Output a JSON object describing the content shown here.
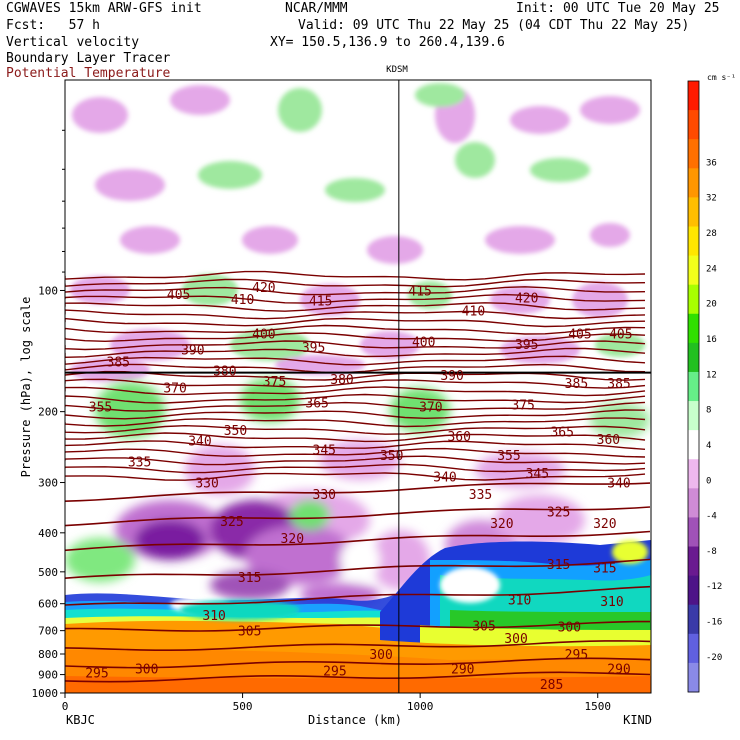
{
  "header": {
    "model": "CGWAVES 15km ARW-GFS init",
    "org": "NCAR/MMM",
    "init": "Init: 00 UTC Tue 20 May 25",
    "fcst": "Fcst:   57 h",
    "valid": "Valid: 09 UTC Thu 22 May 25 (04 CDT Thu 22 May 25)",
    "field1": "Vertical velocity",
    "field2": "Boundary Layer Tracer",
    "field3": "Potential Temperature",
    "xy": "XY= 150.5,136.9 to 260.4,139.6",
    "station_mid": "KDSM",
    "left_end": "KBJC",
    "right_end": "KIND",
    "units": "cm s⁻¹"
  },
  "colors": {
    "theta_line": "#7a0000",
    "field3_text": "#8b1a1a",
    "wmax": "#ff0000"
  },
  "chart_data": {
    "type": "heatmap",
    "xlabel": "Distance (km)",
    "ylabel": "Pressure (hPa), log scale",
    "xlim": [
      0,
      1650
    ],
    "ylim": [
      1000,
      30
    ],
    "x_ticks": [
      0,
      500,
      1000,
      1500
    ],
    "y_ticks": [
      100,
      200,
      300,
      400,
      500,
      600,
      700,
      800,
      900,
      1000
    ],
    "y_scale": "log",
    "vertical_marker_km": 940,
    "colorbar_levels": [
      36,
      32,
      28,
      24,
      20,
      16,
      12,
      8,
      4,
      0,
      -4,
      -8,
      -12,
      -16,
      -20
    ],
    "colorbar_colors": [
      "#ff1a00",
      "#ff4a00",
      "#ff7000",
      "#ff9600",
      "#ffbe00",
      "#ffe600",
      "#f2ff1a",
      "#a8ff00",
      "#30e000",
      "#22c020",
      "#66ee88",
      "#c8ffcc",
      "#ffffff",
      "#eeb8ee",
      "#cf8bd6",
      "#a052b8",
      "#6a1a90",
      "#4e1488",
      "#3a3aa8",
      "#6060e0",
      "#8a8ae8"
    ],
    "theta_labels": [
      {
        "x": 1000,
        "p": 100,
        "v": "415"
      },
      {
        "x": 320,
        "p": 102,
        "v": "405"
      },
      {
        "x": 500,
        "p": 105,
        "v": "410"
      },
      {
        "x": 560,
        "p": 98,
        "v": "420"
      },
      {
        "x": 720,
        "p": 106,
        "v": "415"
      },
      {
        "x": 1150,
        "p": 112,
        "v": "410"
      },
      {
        "x": 1300,
        "p": 104,
        "v": "420"
      },
      {
        "x": 560,
        "p": 128,
        "v": "400"
      },
      {
        "x": 360,
        "p": 140,
        "v": "390"
      },
      {
        "x": 1010,
        "p": 134,
        "v": "400"
      },
      {
        "x": 700,
        "p": 138,
        "v": "395"
      },
      {
        "x": 1300,
        "p": 136,
        "v": "395"
      },
      {
        "x": 1450,
        "p": 128,
        "v": "405"
      },
      {
        "x": 1565,
        "p": 128,
        "v": "405"
      },
      {
        "x": 150,
        "p": 150,
        "v": "385"
      },
      {
        "x": 450,
        "p": 158,
        "v": "380"
      },
      {
        "x": 1090,
        "p": 162,
        "v": "390"
      },
      {
        "x": 590,
        "p": 168,
        "v": "375"
      },
      {
        "x": 780,
        "p": 166,
        "v": "380"
      },
      {
        "x": 1440,
        "p": 170,
        "v": "385"
      },
      {
        "x": 1560,
        "p": 170,
        "v": "385"
      },
      {
        "x": 310,
        "p": 174,
        "v": "370"
      },
      {
        "x": 100,
        "p": 194,
        "v": "355"
      },
      {
        "x": 710,
        "p": 190,
        "v": "365"
      },
      {
        "x": 1030,
        "p": 194,
        "v": "370"
      },
      {
        "x": 1290,
        "p": 192,
        "v": "375"
      },
      {
        "x": 480,
        "p": 222,
        "v": "350"
      },
      {
        "x": 380,
        "p": 236,
        "v": "340"
      },
      {
        "x": 1110,
        "p": 230,
        "v": "360"
      },
      {
        "x": 1400,
        "p": 224,
        "v": "365"
      },
      {
        "x": 1530,
        "p": 234,
        "v": "360"
      },
      {
        "x": 730,
        "p": 248,
        "v": "345"
      },
      {
        "x": 920,
        "p": 256,
        "v": "350"
      },
      {
        "x": 1250,
        "p": 256,
        "v": "355"
      },
      {
        "x": 210,
        "p": 266,
        "v": "335"
      },
      {
        "x": 1070,
        "p": 290,
        "v": "340"
      },
      {
        "x": 1330,
        "p": 284,
        "v": "345"
      },
      {
        "x": 1560,
        "p": 300,
        "v": "340"
      },
      {
        "x": 400,
        "p": 300,
        "v": "330"
      },
      {
        "x": 730,
        "p": 320,
        "v": "330"
      },
      {
        "x": 1170,
        "p": 320,
        "v": "335"
      },
      {
        "x": 1390,
        "p": 354,
        "v": "325"
      },
      {
        "x": 470,
        "p": 374,
        "v": "325"
      },
      {
        "x": 640,
        "p": 412,
        "v": "320"
      },
      {
        "x": 1230,
        "p": 378,
        "v": "320"
      },
      {
        "x": 1520,
        "p": 378,
        "v": "320"
      },
      {
        "x": 1390,
        "p": 478,
        "v": "315"
      },
      {
        "x": 1520,
        "p": 488,
        "v": "315"
      },
      {
        "x": 520,
        "p": 515,
        "v": "315"
      },
      {
        "x": 1280,
        "p": 585,
        "v": "310"
      },
      {
        "x": 1540,
        "p": 590,
        "v": "310"
      },
      {
        "x": 420,
        "p": 640,
        "v": "310"
      },
      {
        "x": 1180,
        "p": 680,
        "v": "305"
      },
      {
        "x": 1420,
        "p": 684,
        "v": "300"
      },
      {
        "x": 520,
        "p": 700,
        "v": "305"
      },
      {
        "x": 1270,
        "p": 730,
        "v": "300"
      },
      {
        "x": 890,
        "p": 800,
        "v": "300"
      },
      {
        "x": 1440,
        "p": 800,
        "v": "295"
      },
      {
        "x": 230,
        "p": 870,
        "v": "300"
      },
      {
        "x": 760,
        "p": 880,
        "v": "295"
      },
      {
        "x": 1120,
        "p": 870,
        "v": "290"
      },
      {
        "x": 1560,
        "p": 870,
        "v": "290"
      },
      {
        "x": 90,
        "p": 890,
        "v": "295"
      },
      {
        "x": 1370,
        "p": 950,
        "v": "285"
      }
    ]
  }
}
